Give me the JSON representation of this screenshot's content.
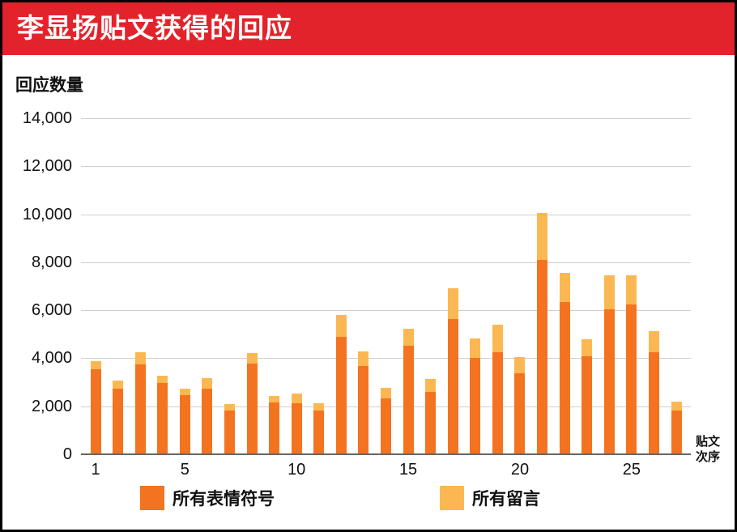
{
  "header": {
    "title": "李显扬贴文获得的回应"
  },
  "colors": {
    "header_bg": "#e3232b",
    "emoji": "#f47321",
    "comments": "#fbb852",
    "grid": "#cfcfcf"
  },
  "chart_data": {
    "type": "bar",
    "stacked": true,
    "title": "李显扬贴文获得的回应",
    "xlabel": "贴文次序",
    "ylabel": "回应数量",
    "ylim": [
      0,
      14000
    ],
    "yticks": [
      "0",
      "2,000",
      "4,000",
      "6,000",
      "8,000",
      "10,000",
      "12,000",
      "14,000"
    ],
    "xtick_labels": [
      "1",
      "5",
      "10",
      "15",
      "20",
      "25"
    ],
    "grid": true,
    "legend_position": "bottom",
    "categories": [
      1,
      2,
      3,
      4,
      5,
      6,
      7,
      8,
      9,
      10,
      11,
      12,
      13,
      14,
      15,
      16,
      17,
      18,
      19,
      20,
      21,
      22,
      23,
      24,
      25,
      26,
      27
    ],
    "series": [
      {
        "name": "所有表情符号",
        "color": "#f47321",
        "values": [
          3550,
          2720,
          3740,
          2960,
          2460,
          2720,
          1810,
          3770,
          2160,
          2120,
          1810,
          4890,
          3680,
          2330,
          4530,
          2600,
          5630,
          4020,
          4260,
          3360,
          8090,
          6330,
          4080,
          6030,
          6250,
          4250,
          1830
        ]
      },
      {
        "name": "所有留言",
        "color": "#fbb852",
        "values": [
          330,
          350,
          510,
          310,
          260,
          450,
          270,
          450,
          260,
          410,
          300,
          900,
          600,
          450,
          710,
          530,
          1290,
          790,
          1140,
          680,
          1970,
          1220,
          700,
          1410,
          1200,
          880,
          360
        ]
      }
    ],
    "totals": [
      3880,
      3070,
      4250,
      3270,
      2720,
      3170,
      2080,
      4220,
      2420,
      2530,
      2110,
      5790,
      4280,
      2780,
      5240,
      3130,
      6920,
      4810,
      5400,
      4040,
      10060,
      7550,
      4780,
      7440,
      7450,
      5130,
      2190
    ]
  },
  "axis": {
    "x_title_line1": "贴文",
    "x_title_line2": "次序"
  },
  "legend": [
    {
      "label": "所有表情符号",
      "color": "#f47321"
    },
    {
      "label": "所有留言",
      "color": "#fbb852"
    }
  ]
}
